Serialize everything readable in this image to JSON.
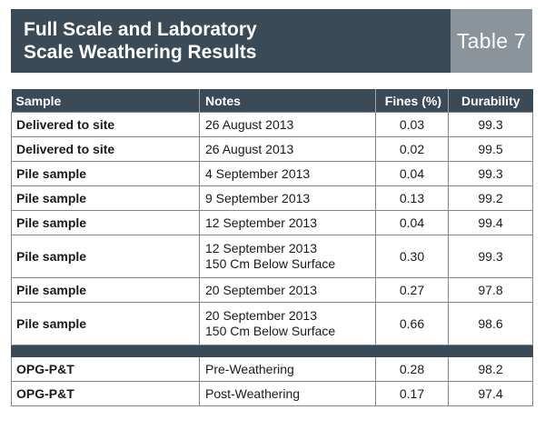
{
  "header": {
    "title_line1": "Full Scale and Laboratory",
    "title_line2": "Scale Weathering Results",
    "table_number": "Table 7"
  },
  "columns": {
    "sample": "Sample",
    "notes": "Notes",
    "fines": "Fines (%)",
    "durability": "Durability"
  },
  "rows": [
    {
      "sample": "Delivered to site",
      "notes1": "26 August 2013",
      "notes2": "",
      "fines": "0.03",
      "durability": "99.3"
    },
    {
      "sample": "Delivered to site",
      "notes1": "26 August 2013",
      "notes2": "",
      "fines": "0.02",
      "durability": "99.5"
    },
    {
      "sample": "Pile sample",
      "notes1": "4 September 2013",
      "notes2": "",
      "fines": "0.04",
      "durability": "99.3"
    },
    {
      "sample": "Pile sample",
      "notes1": "9 September 2013",
      "notes2": "",
      "fines": "0.13",
      "durability": "99.2"
    },
    {
      "sample": "Pile sample",
      "notes1": "12 September 2013",
      "notes2": "",
      "fines": "0.04",
      "durability": "99.4"
    },
    {
      "sample": "Pile sample",
      "notes1": "12 September 2013",
      "notes2": "150 Cm Below Surface",
      "fines": "0.30",
      "durability": "99.3"
    },
    {
      "sample": "Pile sample",
      "notes1": "20 September 2013",
      "notes2": "",
      "fines": "0.27",
      "durability": "97.8"
    },
    {
      "sample": "Pile sample",
      "notes1": "20 September 2013",
      "notes2": "150 Cm Below Surface",
      "fines": "0.66",
      "durability": "98.6"
    }
  ],
  "lab_rows": [
    {
      "sample": "OPG-P&T",
      "notes1": "Pre-Weathering",
      "fines": "0.28",
      "durability": "98.2"
    },
    {
      "sample": "OPG-P&T",
      "notes1": "Post-Weathering",
      "fines": "0.17",
      "durability": "97.4"
    }
  ],
  "colors": {
    "header_dark": "#3b4a57",
    "header_light": "#8b949b",
    "grid": "#7d8890"
  }
}
